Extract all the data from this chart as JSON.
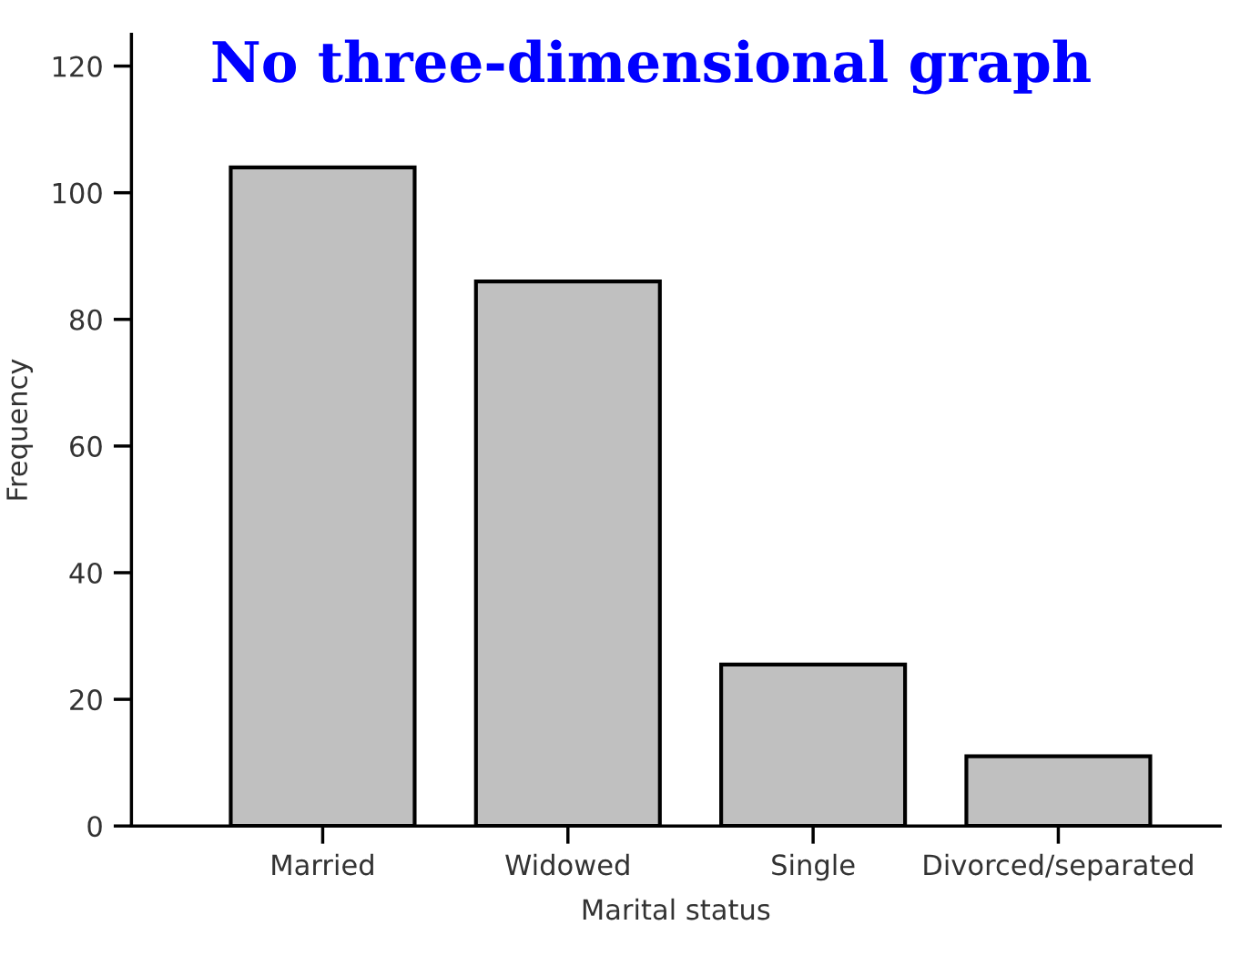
{
  "chart_data": {
    "type": "bar",
    "title": "No three-dimensional graph",
    "xlabel": "Marital status",
    "ylabel": "Frequency",
    "categories": [
      "Married",
      "Widowed",
      "Single",
      "Divorced/separated"
    ],
    "values": [
      104,
      86,
      25.5,
      11
    ],
    "color": "#c0c0c0",
    "ylim": [
      0,
      125
    ],
    "yticks": [
      0,
      20,
      40,
      60,
      80,
      100,
      120
    ],
    "grid": false,
    "legend": false
  }
}
